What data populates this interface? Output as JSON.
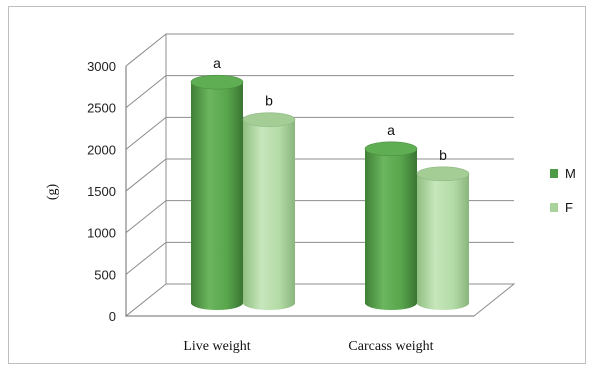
{
  "chart_data": {
    "type": "bar",
    "title": "",
    "xlabel": "",
    "ylabel": "(g)",
    "ylim": [
      0,
      3000
    ],
    "yticks": [
      0,
      500,
      1000,
      1500,
      2000,
      2500,
      3000
    ],
    "categories": [
      "Live weight",
      "Carcass weight"
    ],
    "series": [
      {
        "name": "M",
        "values": [
          2650,
          1850
        ],
        "labels": [
          "a",
          "a"
        ],
        "color": "#4f9a45"
      },
      {
        "name": "F",
        "values": [
          2200,
          1550
        ],
        "labels": [
          "b",
          "b"
        ],
        "color": "#a9d39a"
      }
    ],
    "legend_position": "right",
    "grid": true,
    "style": "3d-cylinder"
  }
}
